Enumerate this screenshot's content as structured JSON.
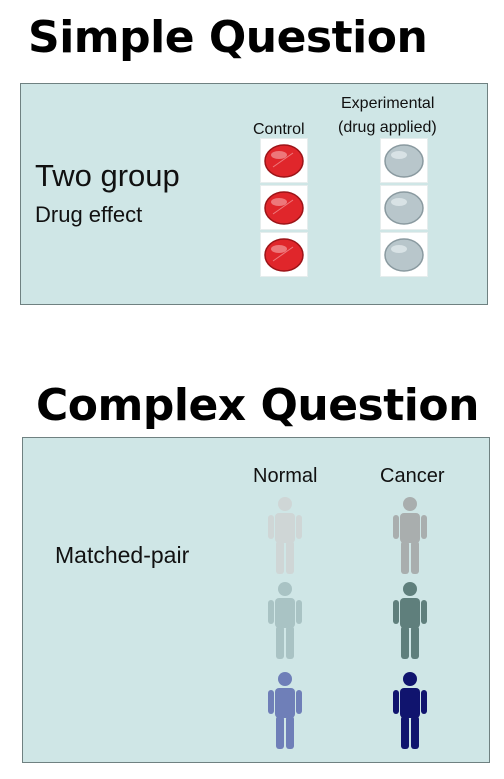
{
  "simple": {
    "title": "Simple Question",
    "label_main": "Two group",
    "label_sub": "Drug effect",
    "control_label": "Control",
    "experimental_label_line1": "Experimental",
    "experimental_label_line2": "(drug applied)",
    "control_dish_color": "#e0262b",
    "experimental_dish_color": "#b8c6cb"
  },
  "complex": {
    "title": "Complex Question",
    "label": "Matched-pair",
    "normal_label": "Normal",
    "cancer_label": "Cancer",
    "normal_colors": [
      "#cfd6d6",
      "#a9c3c4",
      "#6f7fb8"
    ],
    "cancer_colors": [
      "#a9aeae",
      "#5f7f7c",
      "#10146e"
    ]
  }
}
